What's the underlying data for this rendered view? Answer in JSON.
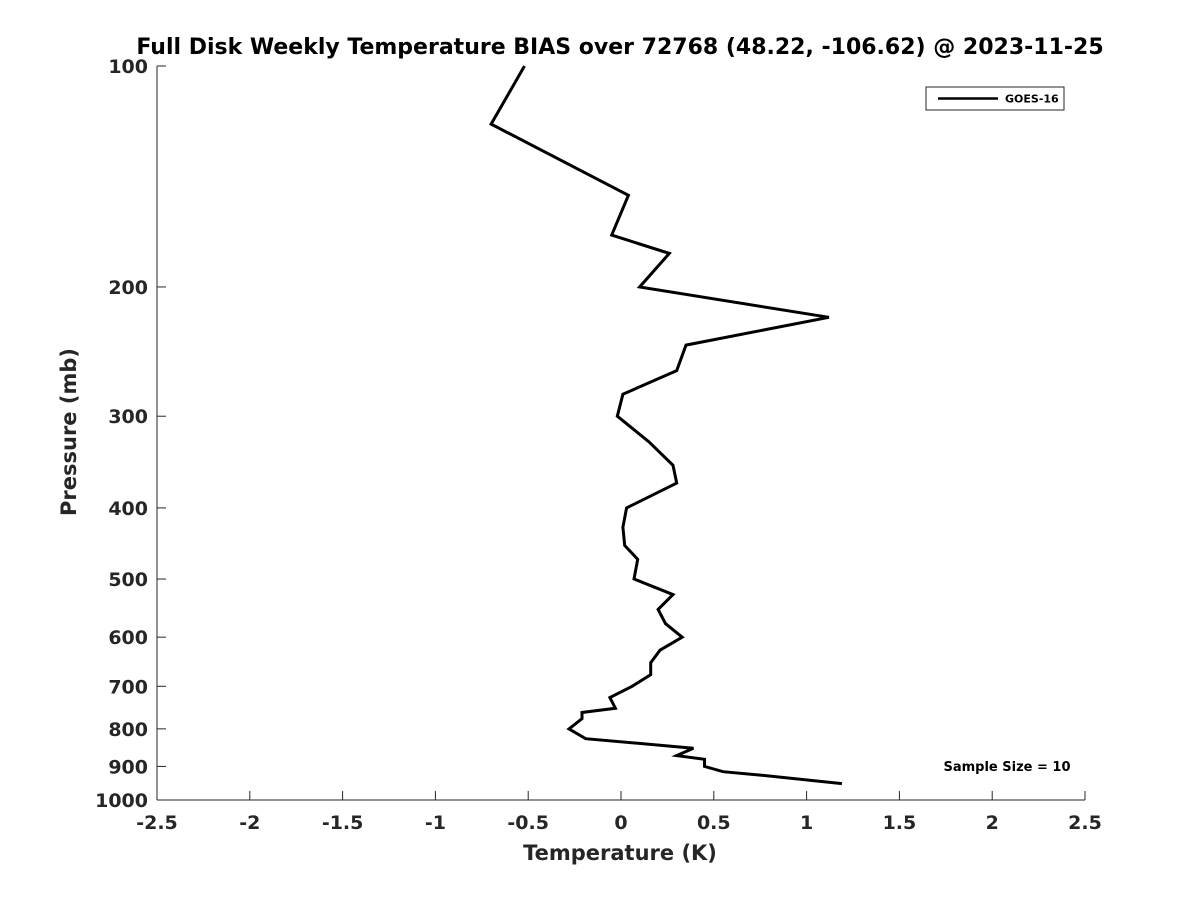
{
  "chart_data": {
    "type": "line",
    "title": "Full Disk Weekly Temperature BIAS over 72768 (48.22, -106.62) @ 2023-11-25",
    "xlabel": "Temperature (K)",
    "ylabel": "Pressure (mb)",
    "xlim": [
      -2.5,
      2.5
    ],
    "ylim": [
      100,
      1000
    ],
    "y_scale": "log",
    "y_reversed": true,
    "x_ticks": [
      "-2.5",
      "-2",
      "-1.5",
      "-1",
      "-0.5",
      "0",
      "0.5",
      "1",
      "1.5",
      "2",
      "2.5"
    ],
    "x_tick_values": [
      -2.5,
      -2,
      -1.5,
      -1,
      -0.5,
      0,
      0.5,
      1,
      1.5,
      2,
      2.5
    ],
    "y_ticks": [
      "100",
      "200",
      "300",
      "400",
      "500",
      "600",
      "700",
      "800",
      "900",
      "1000"
    ],
    "y_tick_values": [
      100,
      200,
      300,
      400,
      500,
      600,
      700,
      800,
      900,
      1000
    ],
    "grid": false,
    "legend_position": "top-right",
    "series": [
      {
        "name": "GOES-16",
        "color": "#000000",
        "points": [
          {
            "t": -0.52,
            "p": 100
          },
          {
            "t": -0.7,
            "p": 120
          },
          {
            "t": 0.04,
            "p": 150
          },
          {
            "t": -0.05,
            "p": 170
          },
          {
            "t": 0.26,
            "p": 180
          },
          {
            "t": 0.1,
            "p": 200
          },
          {
            "t": 1.12,
            "p": 220
          },
          {
            "t": 0.35,
            "p": 240
          },
          {
            "t": 0.3,
            "p": 260
          },
          {
            "t": 0.01,
            "p": 280
          },
          {
            "t": -0.02,
            "p": 300
          },
          {
            "t": 0.15,
            "p": 325
          },
          {
            "t": 0.28,
            "p": 350
          },
          {
            "t": 0.3,
            "p": 370
          },
          {
            "t": 0.03,
            "p": 400
          },
          {
            "t": 0.01,
            "p": 425
          },
          {
            "t": 0.02,
            "p": 450
          },
          {
            "t": 0.09,
            "p": 470
          },
          {
            "t": 0.07,
            "p": 500
          },
          {
            "t": 0.28,
            "p": 525
          },
          {
            "t": 0.2,
            "p": 550
          },
          {
            "t": 0.24,
            "p": 575
          },
          {
            "t": 0.33,
            "p": 600
          },
          {
            "t": 0.21,
            "p": 625
          },
          {
            "t": 0.16,
            "p": 650
          },
          {
            "t": 0.16,
            "p": 675
          },
          {
            "t": 0.06,
            "p": 700
          },
          {
            "t": -0.06,
            "p": 725
          },
          {
            "t": -0.03,
            "p": 750
          },
          {
            "t": -0.21,
            "p": 760
          },
          {
            "t": -0.21,
            "p": 775
          },
          {
            "t": -0.28,
            "p": 800
          },
          {
            "t": -0.19,
            "p": 825
          },
          {
            "t": 0.39,
            "p": 850
          },
          {
            "t": 0.3,
            "p": 870
          },
          {
            "t": 0.45,
            "p": 880
          },
          {
            "t": 0.45,
            "p": 900
          },
          {
            "t": 0.55,
            "p": 915
          },
          {
            "t": 0.75,
            "p": 925
          },
          {
            "t": 1.19,
            "p": 950
          }
        ]
      }
    ],
    "annotation": "Sample Size = 10"
  }
}
